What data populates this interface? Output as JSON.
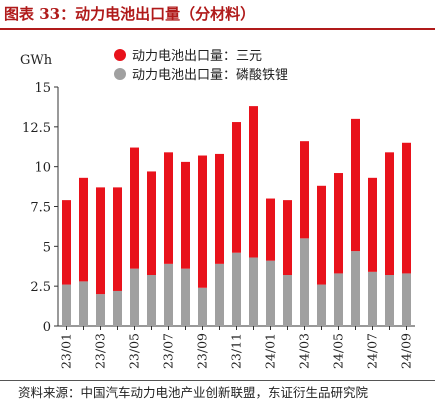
{
  "figure": {
    "title": "图表 33：动力电池出口量（分材料）",
    "source": "资料来源：中国汽车动力电池产业创新联盟，东证衍生品研究院",
    "colors": {
      "title": "#b01a1a",
      "ternary": "#e8121b",
      "lfp": "#a0a0a0"
    }
  },
  "chart_data": {
    "type": "bar",
    "stacked": true,
    "unit_label": "GWh",
    "categories": [
      "23/01",
      "23/02",
      "23/03",
      "23/04",
      "23/05",
      "23/06",
      "23/07",
      "23/08",
      "23/09",
      "23/10",
      "23/11",
      "23/12",
      "24/01",
      "24/02",
      "24/03",
      "24/04",
      "24/05",
      "24/06",
      "24/07",
      "24/08",
      "24/09"
    ],
    "tick_labels": [
      "23/01",
      "23/03",
      "23/05",
      "23/07",
      "23/09",
      "23/11",
      "24/01",
      "24/03",
      "24/05",
      "24/07",
      "24/09"
    ],
    "series": [
      {
        "name": "动力电池出口量：磷酸铁锂",
        "color": "#a0a0a0",
        "values": [
          2.6,
          2.8,
          2.0,
          2.2,
          3.6,
          3.2,
          3.9,
          3.6,
          2.4,
          3.9,
          4.6,
          4.3,
          4.1,
          3.2,
          5.5,
          2.6,
          3.3,
          4.7,
          3.4,
          3.2,
          3.3
        ]
      },
      {
        "name": "动力电池出口量：三元",
        "color": "#e8121b",
        "values": [
          5.3,
          6.5,
          6.7,
          6.5,
          7.6,
          6.5,
          7.0,
          6.7,
          8.3,
          6.9,
          8.2,
          9.5,
          3.9,
          4.7,
          6.1,
          6.2,
          6.3,
          8.3,
          5.9,
          7.7,
          8.2
        ]
      }
    ],
    "ylim": [
      0,
      15
    ],
    "yticks": [
      "0",
      "2.5",
      "5",
      "7.5",
      "10",
      "12.5",
      "15"
    ],
    "legend_position": "top",
    "grid": false
  }
}
